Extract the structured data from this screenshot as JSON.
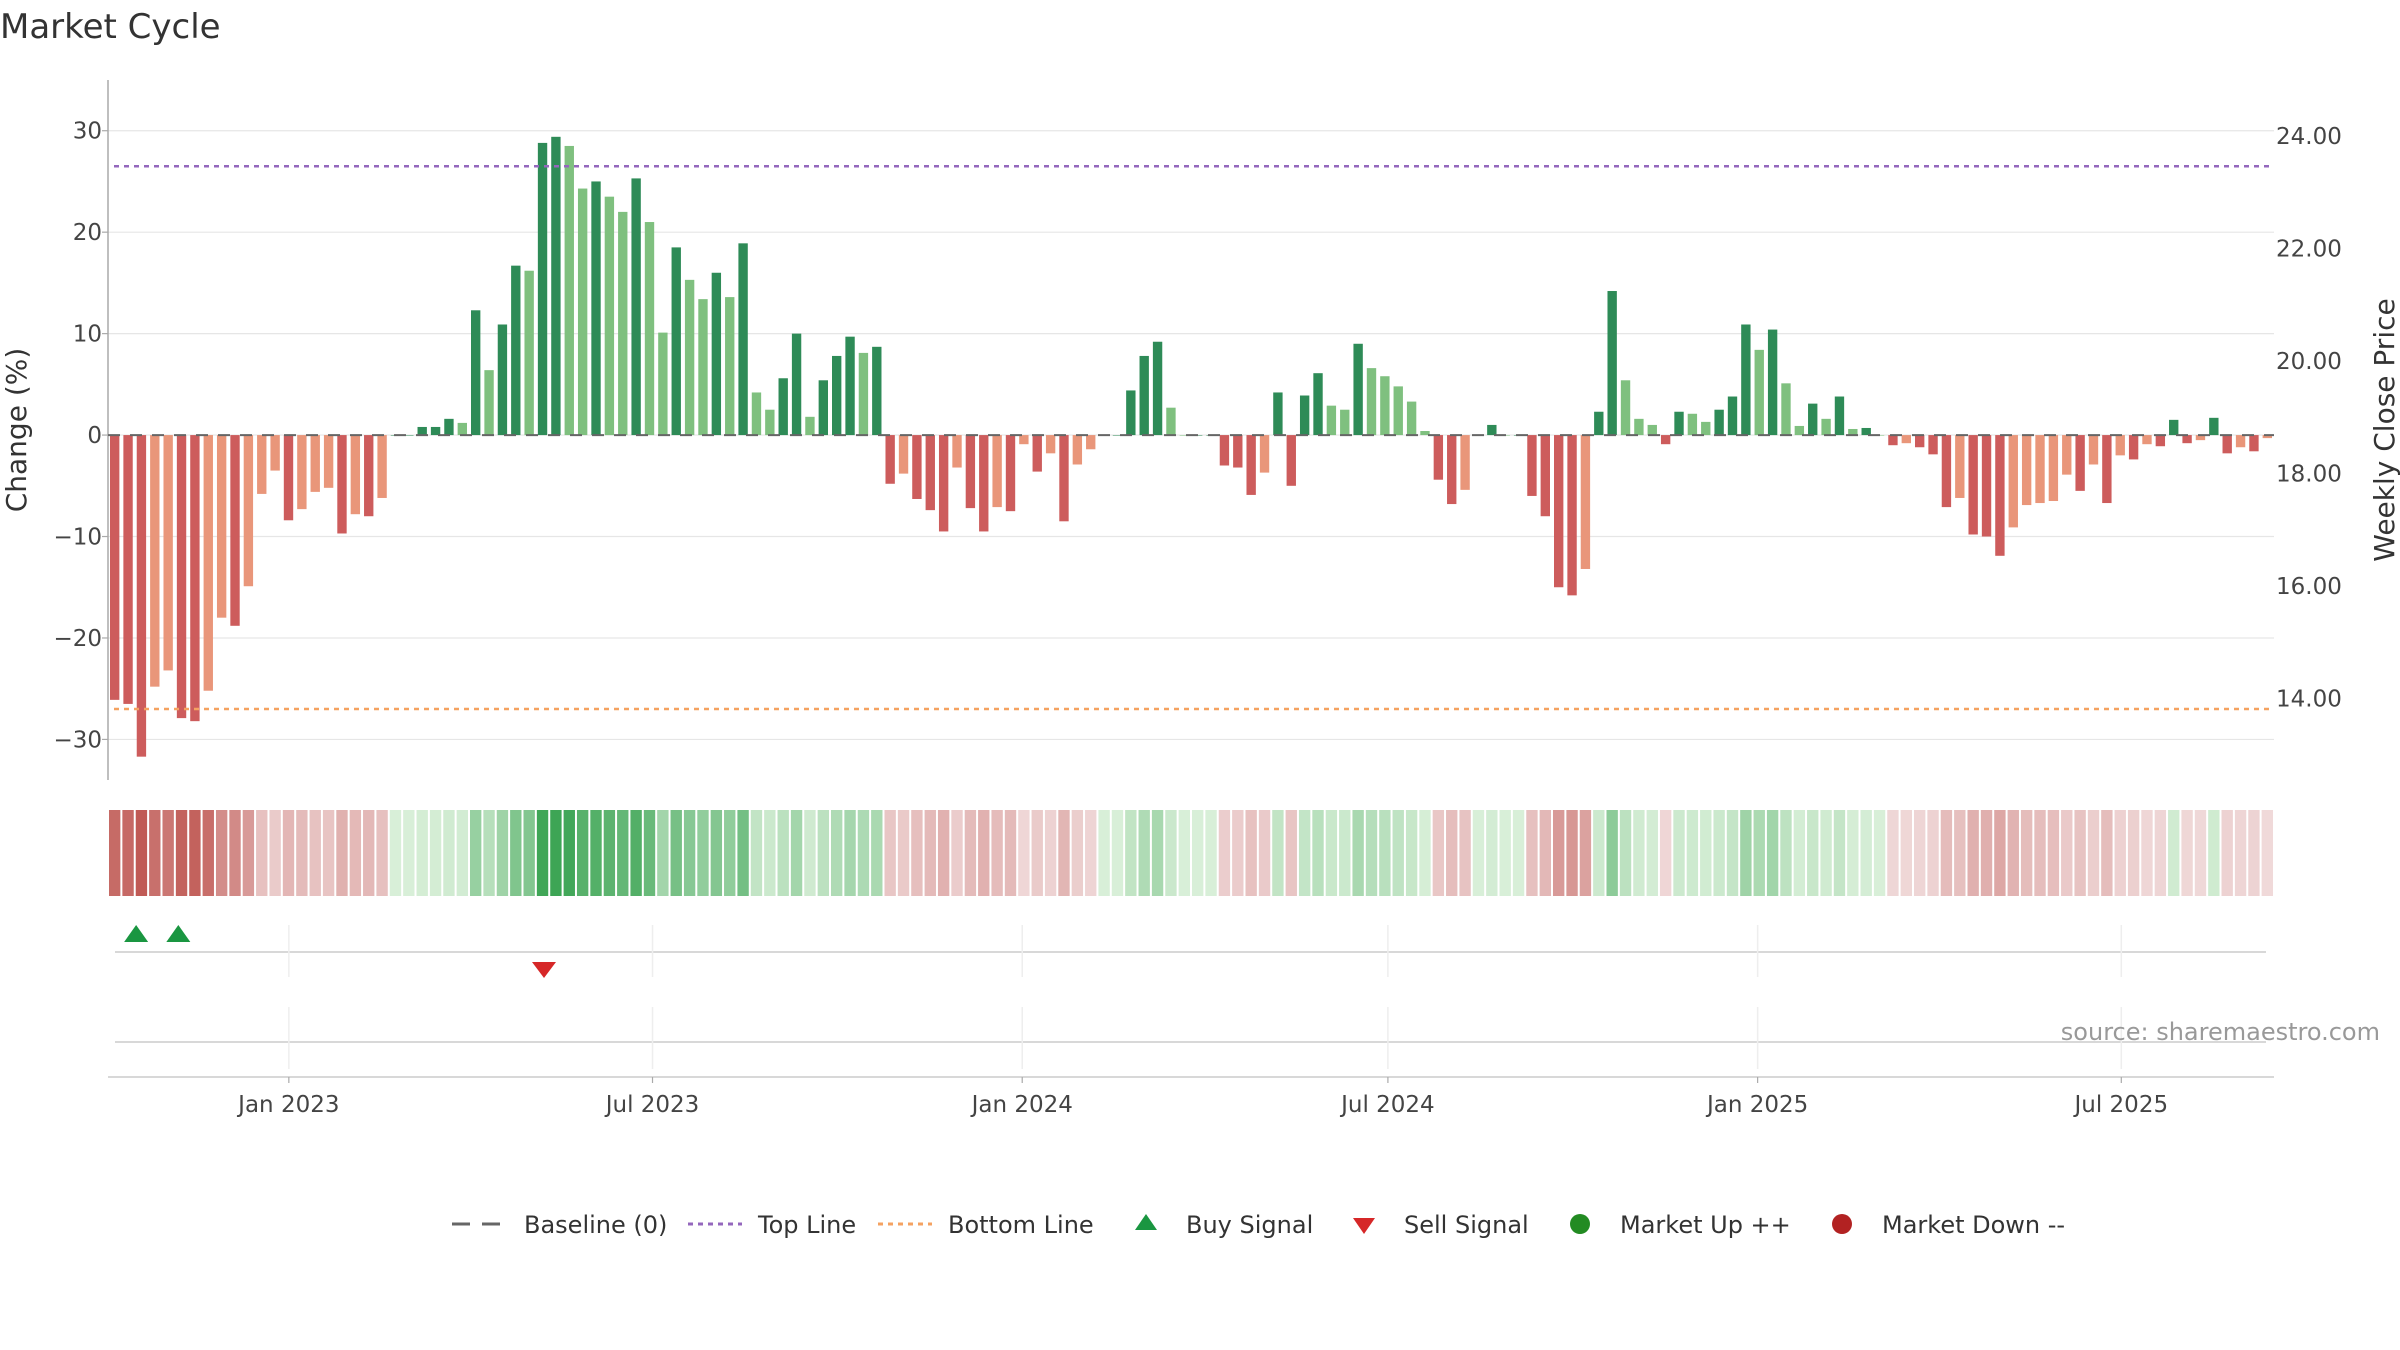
{
  "chart_data": {
    "type": "bar",
    "title": "Market Cycle",
    "ylabel_left": "Change (%)",
    "ylabel_right": "Weekly Close Price",
    "source": "source: sharemaestro.com",
    "ylim_left": [
      -34,
      35
    ],
    "left_ticks": [
      30,
      20,
      10,
      0,
      -10,
      -20,
      -30
    ],
    "left_tick_labels": [
      "30",
      "20",
      "10",
      "0",
      "−10",
      "−20",
      "−30"
    ],
    "ylim_right": [
      12.55,
      25.0
    ],
    "right_ticks": [
      24,
      22,
      20,
      18,
      16,
      14
    ],
    "right_tick_labels": [
      "24.00",
      "22.00",
      "20.00",
      "18.00",
      "16.00",
      "14.00"
    ],
    "top_line": 26.5,
    "bottom_line": -27,
    "x_start": "2022-10-03",
    "x_end": "2025-09-15",
    "x_ticks": [
      {
        "date": "2023-01-01",
        "label": "Jan 2023"
      },
      {
        "date": "2023-07-01",
        "label": "Jul 2023"
      },
      {
        "date": "2024-01-01",
        "label": "Jan 2024"
      },
      {
        "date": "2024-07-01",
        "label": "Jul 2024"
      },
      {
        "date": "2025-01-01",
        "label": "Jan 2025"
      },
      {
        "date": "2025-07-01",
        "label": "Jul 2025"
      }
    ],
    "series": [
      {
        "name": "Weekly change",
        "values": [
          -26.1,
          -26.5,
          -31.7,
          -24.8,
          -23.2,
          -27.9,
          -28.2,
          -25.2,
          -18.0,
          -18.8,
          -14.9,
          -5.8,
          -3.5,
          -8.4,
          -7.3,
          -5.6,
          -5.2,
          -9.7,
          -7.8,
          -8.0,
          -6.2,
          0.0,
          0.0,
          0.8,
          0.8,
          1.6,
          1.2,
          12.3,
          6.4,
          10.9,
          16.7,
          16.2,
          28.8,
          29.4,
          28.5,
          24.3,
          25.0,
          23.5,
          22.0,
          25.3,
          21.0,
          10.1,
          18.5,
          15.3,
          13.4,
          16.0,
          13.6,
          18.9,
          4.2,
          2.5,
          5.6,
          10.0,
          1.8,
          5.4,
          7.8,
          9.7,
          8.1,
          8.7,
          -4.8,
          -3.8,
          -6.3,
          -7.4,
          -9.5,
          -3.2,
          -7.2,
          -9.5,
          -7.1,
          -7.5,
          -0.9,
          -3.6,
          -1.8,
          -8.5,
          -2.9,
          -1.4,
          0.0,
          0.0,
          4.4,
          7.8,
          9.2,
          2.7,
          0.0,
          0.0,
          0.0,
          -3.0,
          -3.2,
          -5.9,
          -3.7,
          4.2,
          -5.0,
          3.9,
          6.1,
          2.9,
          2.5,
          9.0,
          6.6,
          5.8,
          4.8,
          3.3,
          0.4,
          -4.4,
          -6.8,
          -5.4,
          0.0,
          1.0,
          0.0,
          0.0,
          -6.0,
          -8.0,
          -15.0,
          -15.8,
          -13.2,
          2.3,
          14.2,
          5.4,
          1.6,
          1.0,
          -0.9,
          2.3,
          2.1,
          1.3,
          2.5,
          3.8,
          10.9,
          8.4,
          10.4,
          5.1,
          0.9,
          3.1,
          1.6,
          3.8,
          0.6,
          0.7,
          0.0,
          -1.0,
          -0.8,
          -1.2,
          -1.9,
          -7.1,
          -6.2,
          -9.8,
          -10.0,
          -11.9,
          -9.1,
          -6.9,
          -6.7,
          -6.5,
          -3.9,
          -5.5,
          -2.9,
          -6.7,
          -2.0,
          -2.4,
          -0.9,
          -1.1,
          1.5,
          -0.8,
          -0.5,
          1.7,
          -1.8,
          -1.2,
          -1.6,
          -0.3
        ]
      }
    ],
    "signals": {
      "buy": [
        "2022-10-17",
        "2022-11-07"
      ],
      "sell": [
        "2023-05-08"
      ]
    },
    "legend": {
      "baseline": "Baseline (0)",
      "top_line": "Top Line",
      "bottom_line": "Bottom Line",
      "buy": "Buy Signal",
      "sell": "Sell Signal",
      "up": "Market Up ++",
      "down": "Market Down --"
    },
    "colors": {
      "up_strong": "#2e8b57",
      "up_light": "#7fc07f",
      "down_strong": "#cd5c5c",
      "down_light": "#e9967a",
      "top_line": "#9467bd",
      "bottom_line": "#f4a261",
      "buy": "#1a9641",
      "sell": "#d62728",
      "up_dot": "#228b22",
      "down_dot": "#b22222",
      "grid": "#e6e6e6",
      "baseline": "#666666"
    }
  }
}
